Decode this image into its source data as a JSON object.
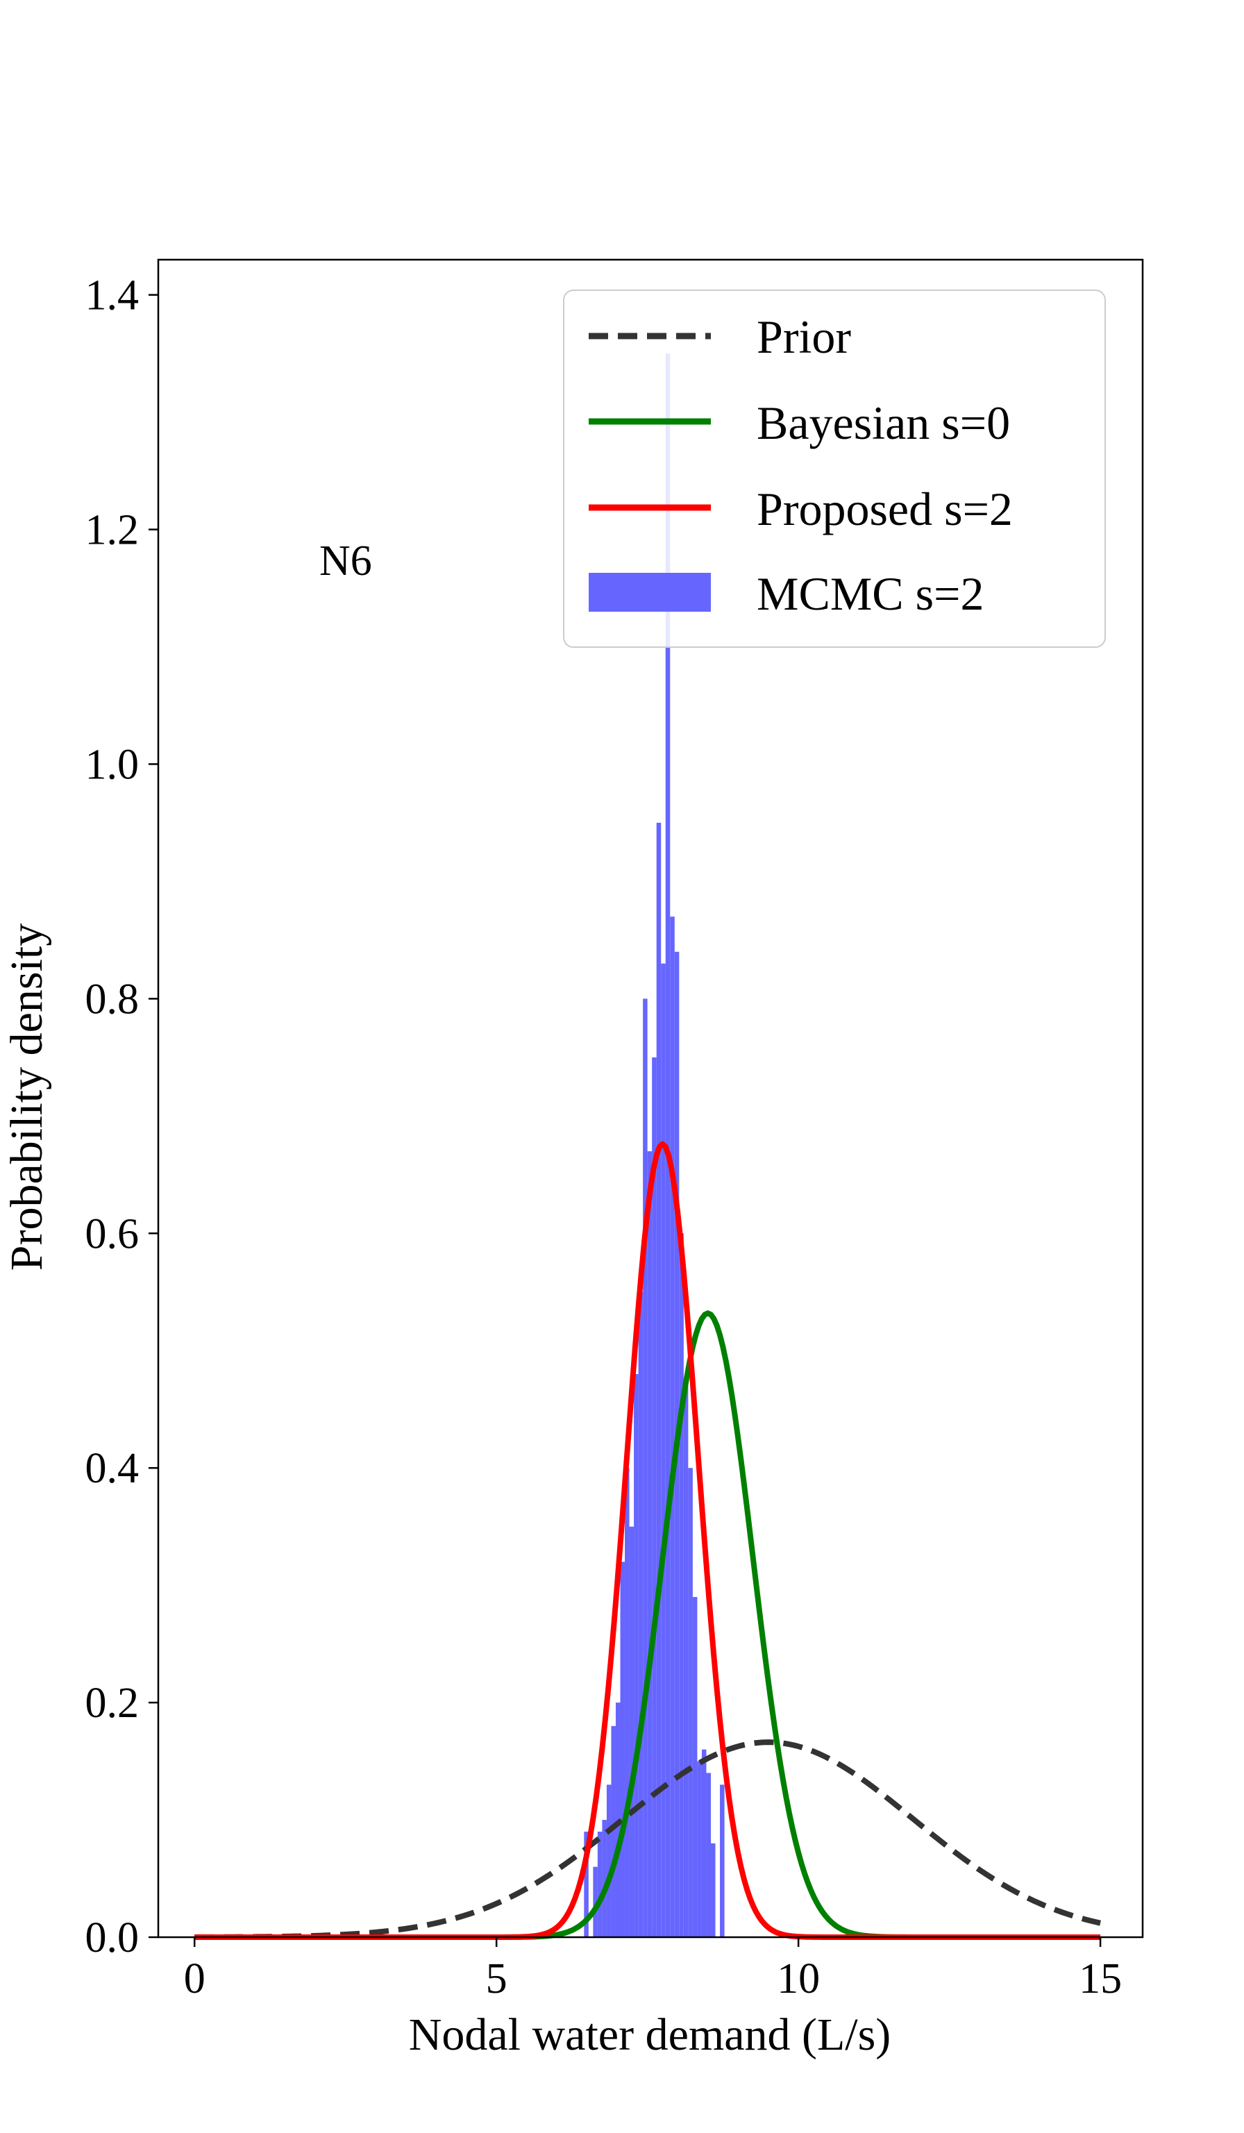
{
  "chart_data": {
    "type": "line",
    "title": "",
    "xlabel": "Nodal water demand (L/s)",
    "ylabel": "Probability density",
    "xlim": [
      -0.6,
      15.7
    ],
    "ylim": [
      0.0,
      1.43
    ],
    "xticks": [
      0,
      5,
      10,
      15
    ],
    "xtick_labels": [
      "0",
      "5",
      "10",
      "15"
    ],
    "yticks": [
      0.0,
      0.2,
      0.4,
      0.6,
      0.8,
      1.0,
      1.2,
      1.4
    ],
    "ytick_labels": [
      "0.0",
      "0.2",
      "0.4",
      "0.6",
      "0.8",
      "1.0",
      "1.2",
      "1.4"
    ],
    "grid": false,
    "legend_position": "top-right",
    "annotation": "N6",
    "legend": [
      {
        "label": "Prior",
        "style": "dashed",
        "color": "#333333"
      },
      {
        "label": "Bayesian s=0",
        "style": "solid",
        "color": "#008000"
      },
      {
        "label": "Proposed s=2",
        "style": "solid",
        "color": "#ff0000"
      },
      {
        "label": "MCMC s=2",
        "style": "bar",
        "color": "#6666ff"
      }
    ],
    "series": [
      {
        "name": "Prior",
        "kind": "normal",
        "mean": 9.5,
        "sd": 2.4,
        "x_range": [
          0,
          15
        ]
      },
      {
        "name": "Bayesian s=0",
        "kind": "normal",
        "mean": 8.5,
        "sd": 0.75,
        "x_range": [
          0,
          15
        ]
      },
      {
        "name": "Proposed s=2",
        "kind": "normal",
        "mean": 7.75,
        "sd": 0.59,
        "x_range": [
          0,
          15
        ]
      }
    ],
    "histogram": {
      "name": "MCMC s=2",
      "bin_width": 0.075,
      "bins": [
        [
          6.45,
          0.09
        ],
        [
          6.6,
          0.06
        ],
        [
          6.675,
          0.09
        ],
        [
          6.75,
          0.1
        ],
        [
          6.825,
          0.13
        ],
        [
          6.9,
          0.18
        ],
        [
          6.975,
          0.2
        ],
        [
          7.05,
          0.32
        ],
        [
          7.125,
          0.4
        ],
        [
          7.2,
          0.35
        ],
        [
          7.275,
          0.48
        ],
        [
          7.35,
          0.55
        ],
        [
          7.425,
          0.8
        ],
        [
          7.5,
          0.67
        ],
        [
          7.575,
          0.75
        ],
        [
          7.65,
          0.95
        ],
        [
          7.725,
          0.83
        ],
        [
          7.8,
          1.35
        ],
        [
          7.875,
          0.87
        ],
        [
          7.95,
          0.84
        ],
        [
          8.025,
          0.6
        ],
        [
          8.1,
          0.47
        ],
        [
          8.175,
          0.4
        ],
        [
          8.25,
          0.29
        ],
        [
          8.325,
          0.15
        ],
        [
          8.4,
          0.16
        ],
        [
          8.475,
          0.14
        ],
        [
          8.55,
          0.08
        ],
        [
          8.7,
          0.13
        ]
      ]
    }
  }
}
